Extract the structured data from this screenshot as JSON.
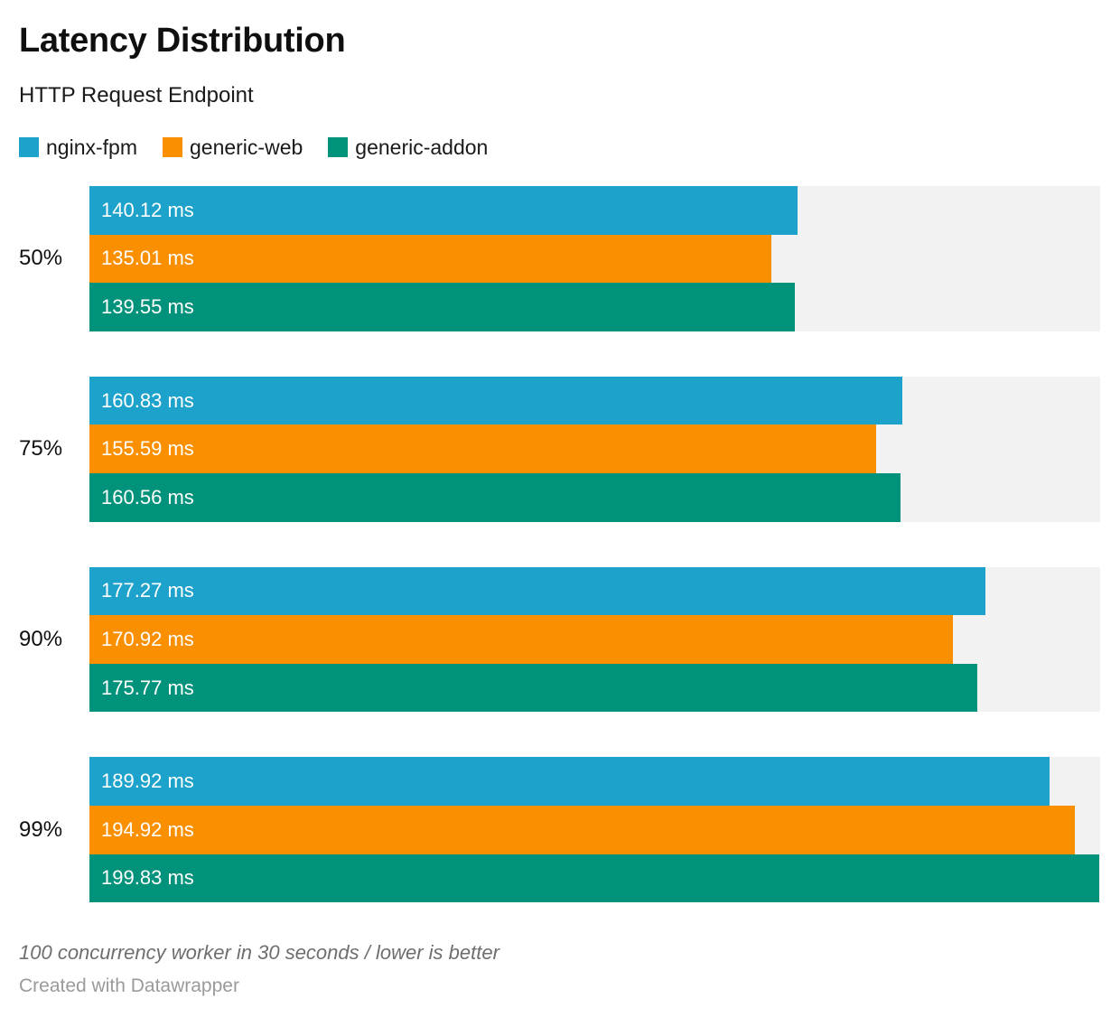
{
  "header": {
    "title": "Latency Distribution",
    "subtitle": "HTTP Request Endpoint"
  },
  "legend": [
    {
      "label": "nginx-fpm",
      "color": "#1ca2cb"
    },
    {
      "label": "generic-web",
      "color": "#fa8f00"
    },
    {
      "label": "generic-addon",
      "color": "#00927a"
    }
  ],
  "chart_data": {
    "type": "bar",
    "orientation": "horizontal",
    "title": "Latency Distribution",
    "subtitle": "HTTP Request Endpoint",
    "categories": [
      "50%",
      "75%",
      "90%",
      "99%"
    ],
    "series": [
      {
        "name": "nginx-fpm",
        "color": "#1ca2cb",
        "values": [
          140.12,
          160.83,
          177.27,
          189.92
        ]
      },
      {
        "name": "generic-web",
        "color": "#fa8f00",
        "values": [
          135.01,
          155.59,
          170.92,
          194.92
        ]
      },
      {
        "name": "generic-addon",
        "color": "#00927a",
        "values": [
          139.55,
          160.56,
          175.77,
          199.83
        ]
      }
    ],
    "unit": "ms",
    "value_label_format": "0.00 ms",
    "xlim": [
      0,
      200
    ],
    "grid": false,
    "track_color": "#f2f2f2",
    "legend_position": "top",
    "value_labels_inside_bars": true
  },
  "footer": {
    "note": "100 concurrency worker in 30 seconds / lower is better",
    "attribution": "Created with Datawrapper"
  }
}
